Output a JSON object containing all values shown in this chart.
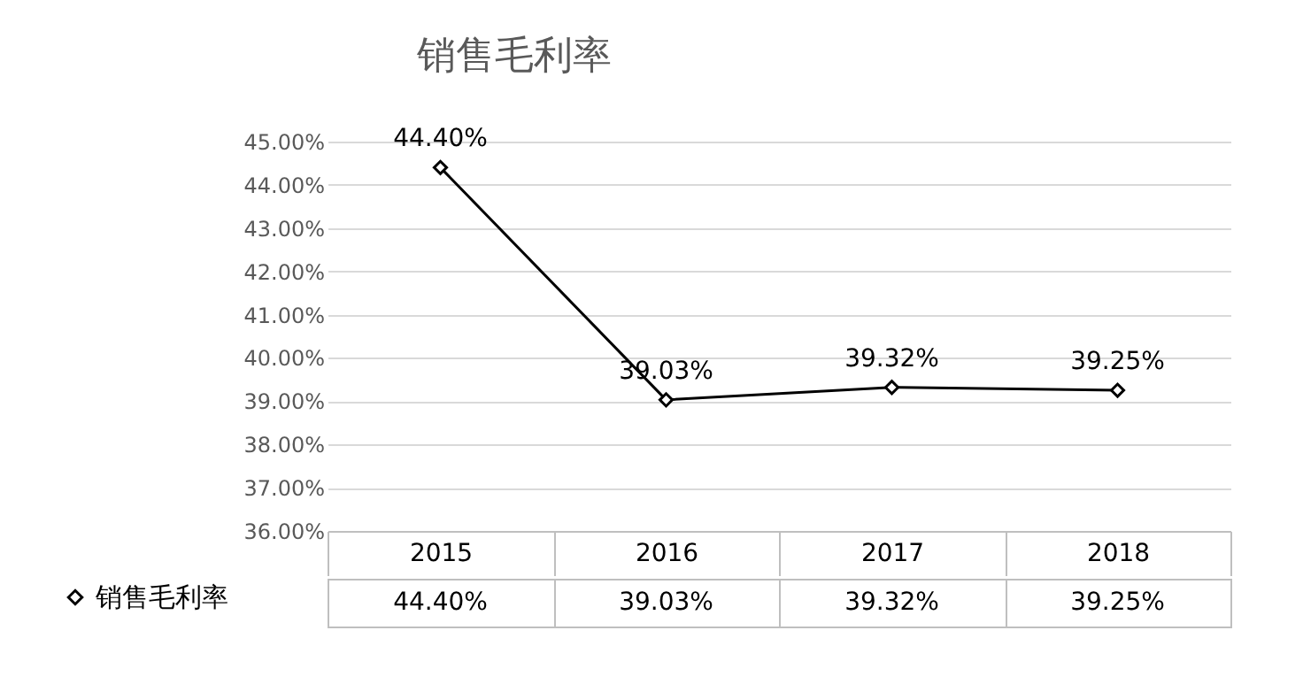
{
  "chart_data": {
    "type": "line",
    "title": "销售毛利率",
    "categories": [
      "2015",
      "2016",
      "2017",
      "2018"
    ],
    "series": [
      {
        "name": "销售毛利率",
        "color": "#000000",
        "values": [
          44.4,
          39.03,
          39.32,
          39.25
        ],
        "value_labels": [
          "44.40%",
          "39.03%",
          "39.32%",
          "39.25%"
        ]
      }
    ],
    "ylim": [
      36,
      45
    ],
    "yticks": [
      {
        "value": 36,
        "label": "36.00%"
      },
      {
        "value": 37,
        "label": "37.00%"
      },
      {
        "value": 38,
        "label": "38.00%"
      },
      {
        "value": 39,
        "label": "39.00%"
      },
      {
        "value": 40,
        "label": "40.00%"
      },
      {
        "value": 41,
        "label": "41.00%"
      },
      {
        "value": 42,
        "label": "42.00%"
      },
      {
        "value": 43,
        "label": "43.00%"
      },
      {
        "value": 44,
        "label": "44.00%"
      },
      {
        "value": 45,
        "label": "45.00%"
      }
    ],
    "grid": "y",
    "legend": "bottom left",
    "marker": "diamond",
    "line_style": "solid"
  }
}
